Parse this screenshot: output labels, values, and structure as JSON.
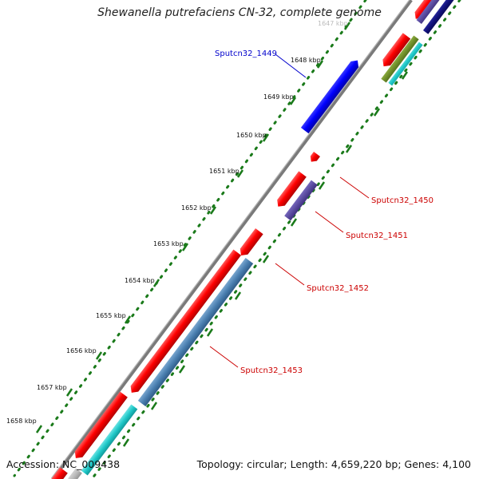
{
  "title": "Shewanella putrefaciens CN-32, complete genome",
  "accession_text": "Accession: NC_009438",
  "summary_text": "Topology: circular; Length: 4,659,220 bp; Genes: 4,100",
  "scale_labels": [
    "1647 kbp",
    "1648 kbp",
    "1649 kbp",
    "1650 kbp",
    "1651 kbp",
    "1652 kbp",
    "1653 kbp",
    "1654 kbp",
    "1655 kbp",
    "1656 kbp",
    "1657 kbp",
    "1658 kbp"
  ],
  "gene_labels": [
    "Sputcn32_1449",
    "Sputcn32_1450",
    "Sputcn32_1451",
    "Sputcn32_1452",
    "Sputcn32_1453"
  ],
  "colors": {
    "forward_gene": "#ff0000",
    "reverse_gene": "#0000ff",
    "cog_purple": "#5a4ba0",
    "cog_steelblue": "#4a7fb0",
    "cog_cyan": "#1ec8c8",
    "cog_olive": "#6f8f2a",
    "cog_navy": "#10107a",
    "backbone": "#777777",
    "ticks": "#1a7a1a",
    "label_reverse": "#0000cc",
    "label_forward": "#cc0000"
  }
}
